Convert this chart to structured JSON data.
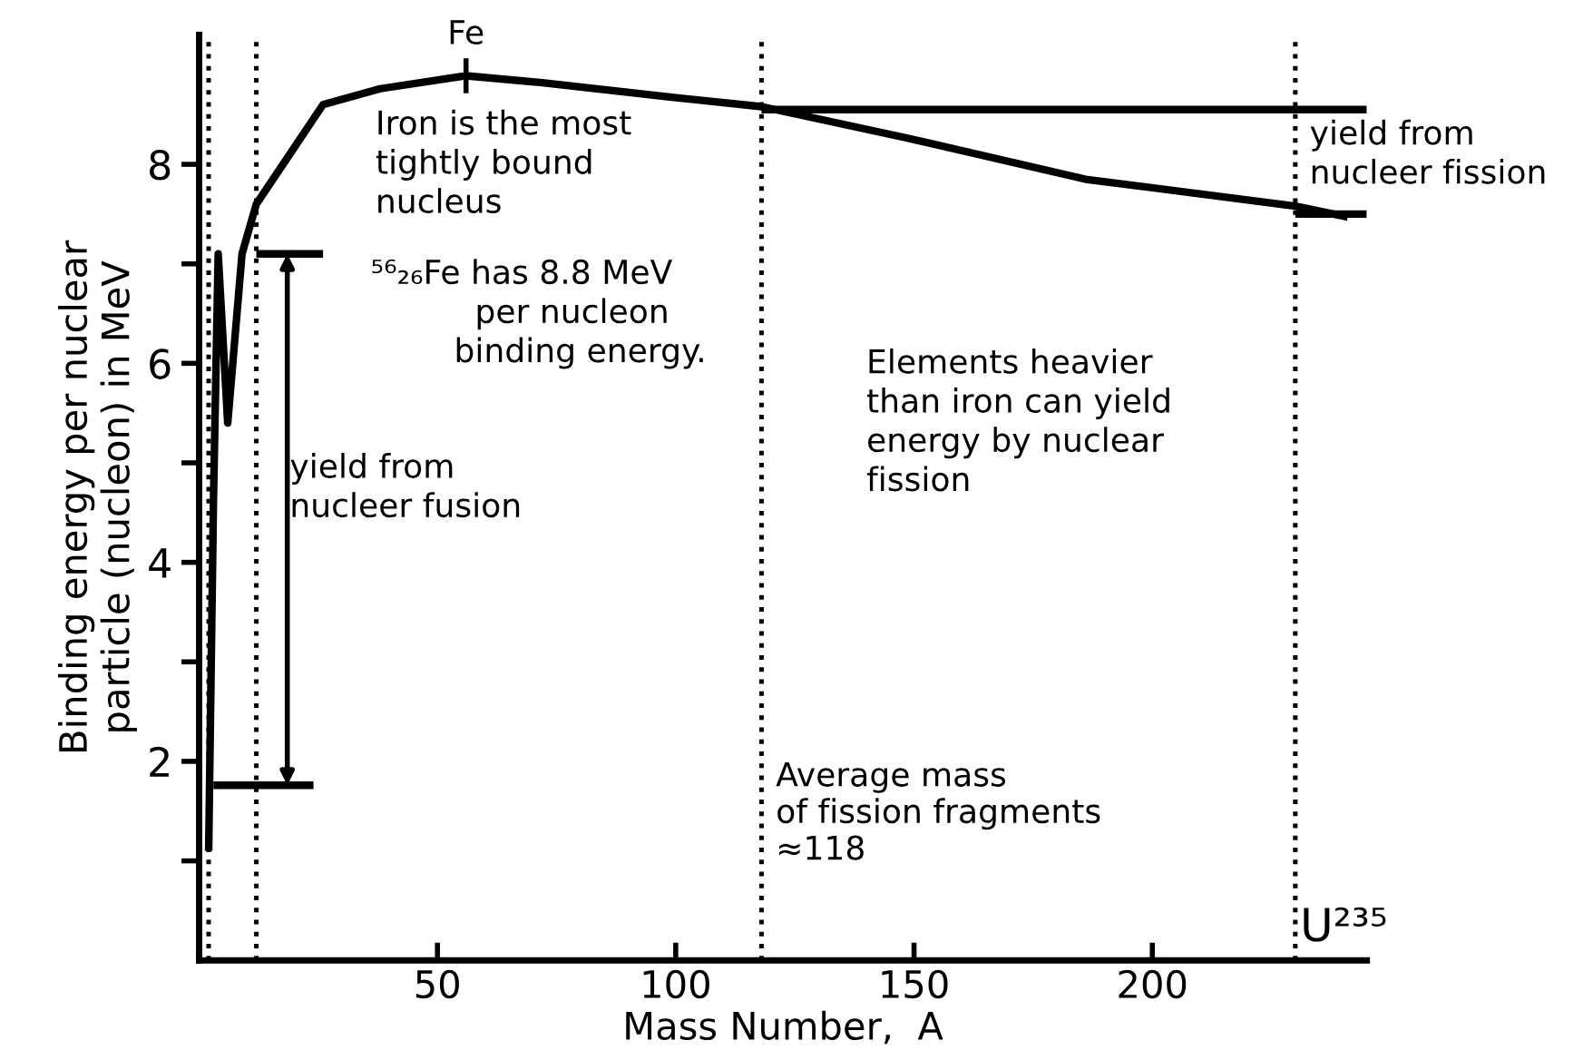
{
  "chart_data": {
    "type": "line",
    "xlabel": "Mass Number,  A",
    "ylabel": "Binding energy per nuclear\nparticle (nucleon) in MeV",
    "xlim": [
      0,
      245
    ],
    "ylim": [
      0,
      9.3
    ],
    "xticks": [
      50,
      100,
      150,
      200
    ],
    "yticks": [
      {
        "value": 1,
        "label": null
      },
      2,
      {
        "value": 3,
        "label": null
      },
      4,
      {
        "value": 5,
        "label": null
      },
      6,
      {
        "value": 7,
        "label": null
      },
      8
    ],
    "grid": false,
    "legend": false,
    "marker": "none",
    "series": [
      {
        "color": "#000000",
        "line_style": "solid",
        "x": [
          2,
          3,
          4,
          6,
          9,
          12,
          19,
          26,
          38,
          56,
          72,
          100,
          118,
          148,
          186,
          230,
          241
        ],
        "values": [
          1.1,
          4.6,
          7.1,
          5.4,
          7.1,
          7.6,
          8.1,
          8.6,
          8.76,
          8.89,
          8.82,
          8.67,
          8.58,
          8.27,
          7.85,
          7.58,
          7.47
        ]
      },
      {
        "color": "#000000",
        "line_style": "solid",
        "x": [
          12,
          26
        ],
        "values": [
          7.1,
          7.1
        ]
      },
      {
        "color": "#000000",
        "line_style": "solid",
        "x": [
          3,
          24
        ],
        "values": [
          1.76,
          1.76
        ]
      },
      {
        "color": "#000000",
        "line_style": "solid",
        "x": [
          118,
          245
        ],
        "values": [
          8.55,
          8.55
        ]
      },
      {
        "color": "#000000",
        "line_style": "solid",
        "x": [
          230,
          245
        ],
        "values": [
          7.5,
          7.5
        ]
      }
    ],
    "ref_lines": [
      {
        "axis": "x",
        "value": 2,
        "line_style": "dotted",
        "color": "#000000"
      },
      {
        "axis": "x",
        "value": 12,
        "line_style": "dotted",
        "color": "#000000"
      },
      {
        "axis": "x",
        "value": 118,
        "line_style": "dotted",
        "color": "#000000",
        "label": "Average mass\nof fission fragments\n≈118"
      },
      {
        "axis": "x",
        "value": 230,
        "line_style": "dotted",
        "color": "#000000",
        "label": "U²³⁵"
      }
    ],
    "annotations": [
      {
        "text": "Fe",
        "x": 56,
        "y": 8.89
      },
      "Iron is the most\ntightly bound\nnucleus",
      "⁵⁶₂₆Fe has 8.8 MeV\n          per nucleon\n        binding energy.",
      "yield from\nnucleer fusion",
      "Elements heavier\nthan iron can yield\nenergy by nuclear\nfission",
      "yield from\nnucleer fission"
    ]
  }
}
